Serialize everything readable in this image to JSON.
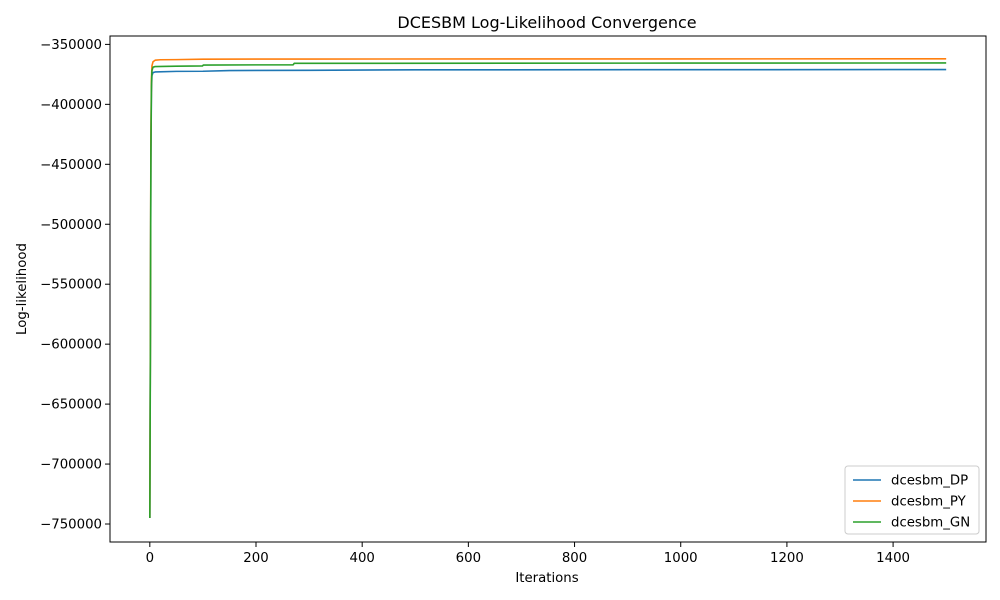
{
  "chart_data": {
    "type": "line",
    "title": "DCESBM Log-Likelihood Convergence",
    "xlabel": "Iterations",
    "ylabel": "Log-likelihood",
    "xlim": [
      -75,
      1575
    ],
    "ylim": [
      -765000,
      -343000
    ],
    "xticks": [
      0,
      200,
      400,
      600,
      800,
      1000,
      1200,
      1400
    ],
    "xtick_labels": [
      "0",
      "200",
      "400",
      "600",
      "800",
      "1000",
      "1200",
      "1400"
    ],
    "yticks": [
      -750000,
      -700000,
      -650000,
      -600000,
      -550000,
      -500000,
      -450000,
      -400000,
      -350000
    ],
    "ytick_labels": [
      "−750000",
      "−700000",
      "−650000",
      "−600000",
      "−550000",
      "−500000",
      "−450000",
      "−400000",
      "−350000"
    ],
    "grid": false,
    "legend_position": "lower-right",
    "series": [
      {
        "name": "dcesbm_DP",
        "color": "#1f77b4",
        "x": [
          0,
          1,
          2,
          3,
          4,
          6,
          10,
          50,
          100,
          150,
          300,
          500,
          1000,
          1500
        ],
        "y": [
          -745000,
          -600000,
          -450000,
          -390000,
          -376000,
          -373500,
          -373000,
          -372500,
          -372400,
          -371800,
          -371600,
          -371200,
          -371100,
          -371000
        ]
      },
      {
        "name": "dcesbm_PY",
        "color": "#ff7f0e",
        "x": [
          0,
          1,
          2,
          3,
          4,
          6,
          10,
          20,
          50,
          100,
          300,
          1000,
          1500
        ],
        "y": [
          -745000,
          -600000,
          -430000,
          -380000,
          -368000,
          -364500,
          -363200,
          -362800,
          -362700,
          -362300,
          -362200,
          -362100,
          -362000
        ]
      },
      {
        "name": "dcesbm_GN",
        "color": "#2ca02c",
        "x": [
          0,
          1,
          2,
          3,
          4,
          6,
          10,
          50,
          99,
          101,
          270,
          272,
          1000,
          1500
        ],
        "y": [
          -745000,
          -620000,
          -440000,
          -385000,
          -372000,
          -369000,
          -368500,
          -368200,
          -368000,
          -367200,
          -367000,
          -365800,
          -365600,
          -365500
        ]
      }
    ]
  }
}
